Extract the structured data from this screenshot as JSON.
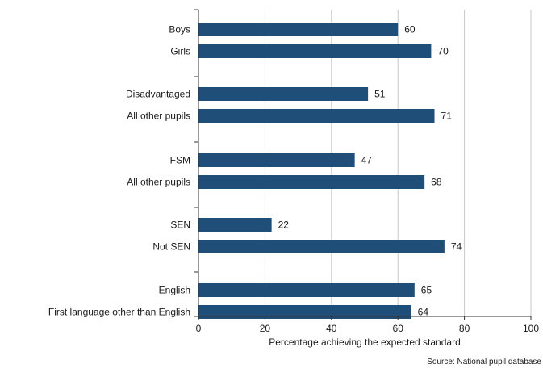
{
  "chart_data": {
    "type": "bar",
    "orientation": "horizontal",
    "groups": [
      [
        {
          "label": "Boys",
          "value": 60
        },
        {
          "label": "Girls",
          "value": 70
        }
      ],
      [
        {
          "label": "Disadvantaged",
          "value": 51
        },
        {
          "label": "All other pupils",
          "value": 71
        }
      ],
      [
        {
          "label": "FSM",
          "value": 47
        },
        {
          "label": "All other pupils",
          "value": 68
        }
      ],
      [
        {
          "label": "SEN",
          "value": 22
        },
        {
          "label": "Not SEN",
          "value": 74
        }
      ],
      [
        {
          "label": "English",
          "value": 65
        },
        {
          "label": "First language other than English",
          "value": 64
        }
      ]
    ],
    "xlabel": "Percentage achieving the expected standard",
    "xlim": [
      0,
      100
    ],
    "xticks": [
      0,
      20,
      40,
      60,
      80,
      100
    ],
    "grid": "vertical",
    "bar_color": "#1f4e79",
    "gridline_color": "#c8c8c8",
    "source": "Source: National pupil database"
  }
}
